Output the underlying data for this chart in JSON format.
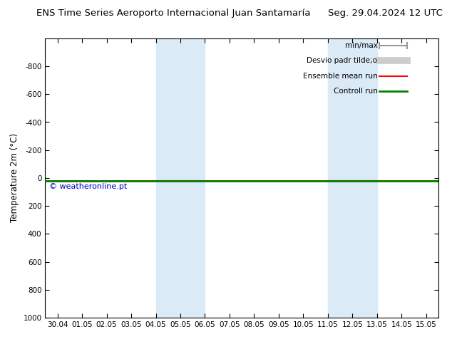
{
  "title_left": "ENS Time Series Aeroporto Internacional Juan Santamaría",
  "title_right": "Seg. 29.04.2024 12 UTC",
  "ylabel": "Temperature 2m (°C)",
  "ylim_bottom": 1000,
  "ylim_top": -1000,
  "yticks": [
    -800,
    -600,
    -400,
    -200,
    0,
    200,
    400,
    600,
    800,
    1000
  ],
  "x_tick_labels": [
    "30.04",
    "01.05",
    "02.05",
    "03.05",
    "04.05",
    "05.05",
    "06.05",
    "07.05",
    "08.05",
    "09.05",
    "10.05",
    "11.05",
    "12.05",
    "13.05",
    "14.05",
    "15.05"
  ],
  "x_tick_positions": [
    0,
    1,
    2,
    3,
    4,
    5,
    6,
    7,
    8,
    9,
    10,
    11,
    12,
    13,
    14,
    15
  ],
  "shaded_regions": [
    {
      "x_start": 4.0,
      "x_end": 6.0
    },
    {
      "x_start": 11.0,
      "x_end": 13.0
    }
  ],
  "green_line_y": 20,
  "red_line_y": 20,
  "watermark": "© weatheronline.pt",
  "watermark_color": "#0000cc",
  "legend_items": [
    {
      "label": "min/max",
      "color": "#999999",
      "lw": 1.5,
      "style": "minmax"
    },
    {
      "label": "Desvio padr tilde;o",
      "color": "#cccccc",
      "lw": 7,
      "style": "thick"
    },
    {
      "label": "Ensemble mean run",
      "color": "red",
      "lw": 1.5,
      "style": "line"
    },
    {
      "label": "Controll run",
      "color": "green",
      "lw": 2,
      "style": "line"
    }
  ],
  "bg_color": "#ffffff",
  "plot_bg_color": "#ffffff",
  "border_color": "#000000",
  "shaded_color": "#daeaf7",
  "title_fontsize": 9.5,
  "tick_fontsize": 7.5,
  "ylabel_fontsize": 8.5,
  "legend_fontsize": 7.5
}
